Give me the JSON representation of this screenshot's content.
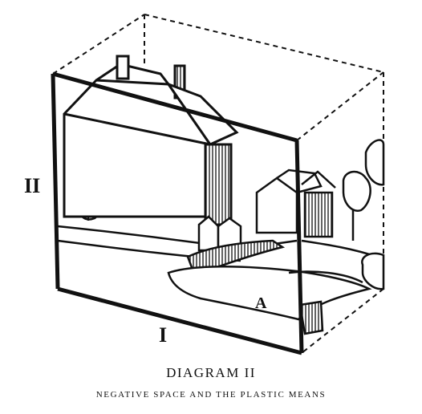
{
  "diagram": {
    "labels": {
      "plane_two": "II",
      "plane_one": "I",
      "region_a": "A"
    }
  },
  "caption": {
    "title": "DIAGRAM II",
    "subtitle": "NEGATIVE SPACE AND THE PLASTIC MEANS"
  }
}
